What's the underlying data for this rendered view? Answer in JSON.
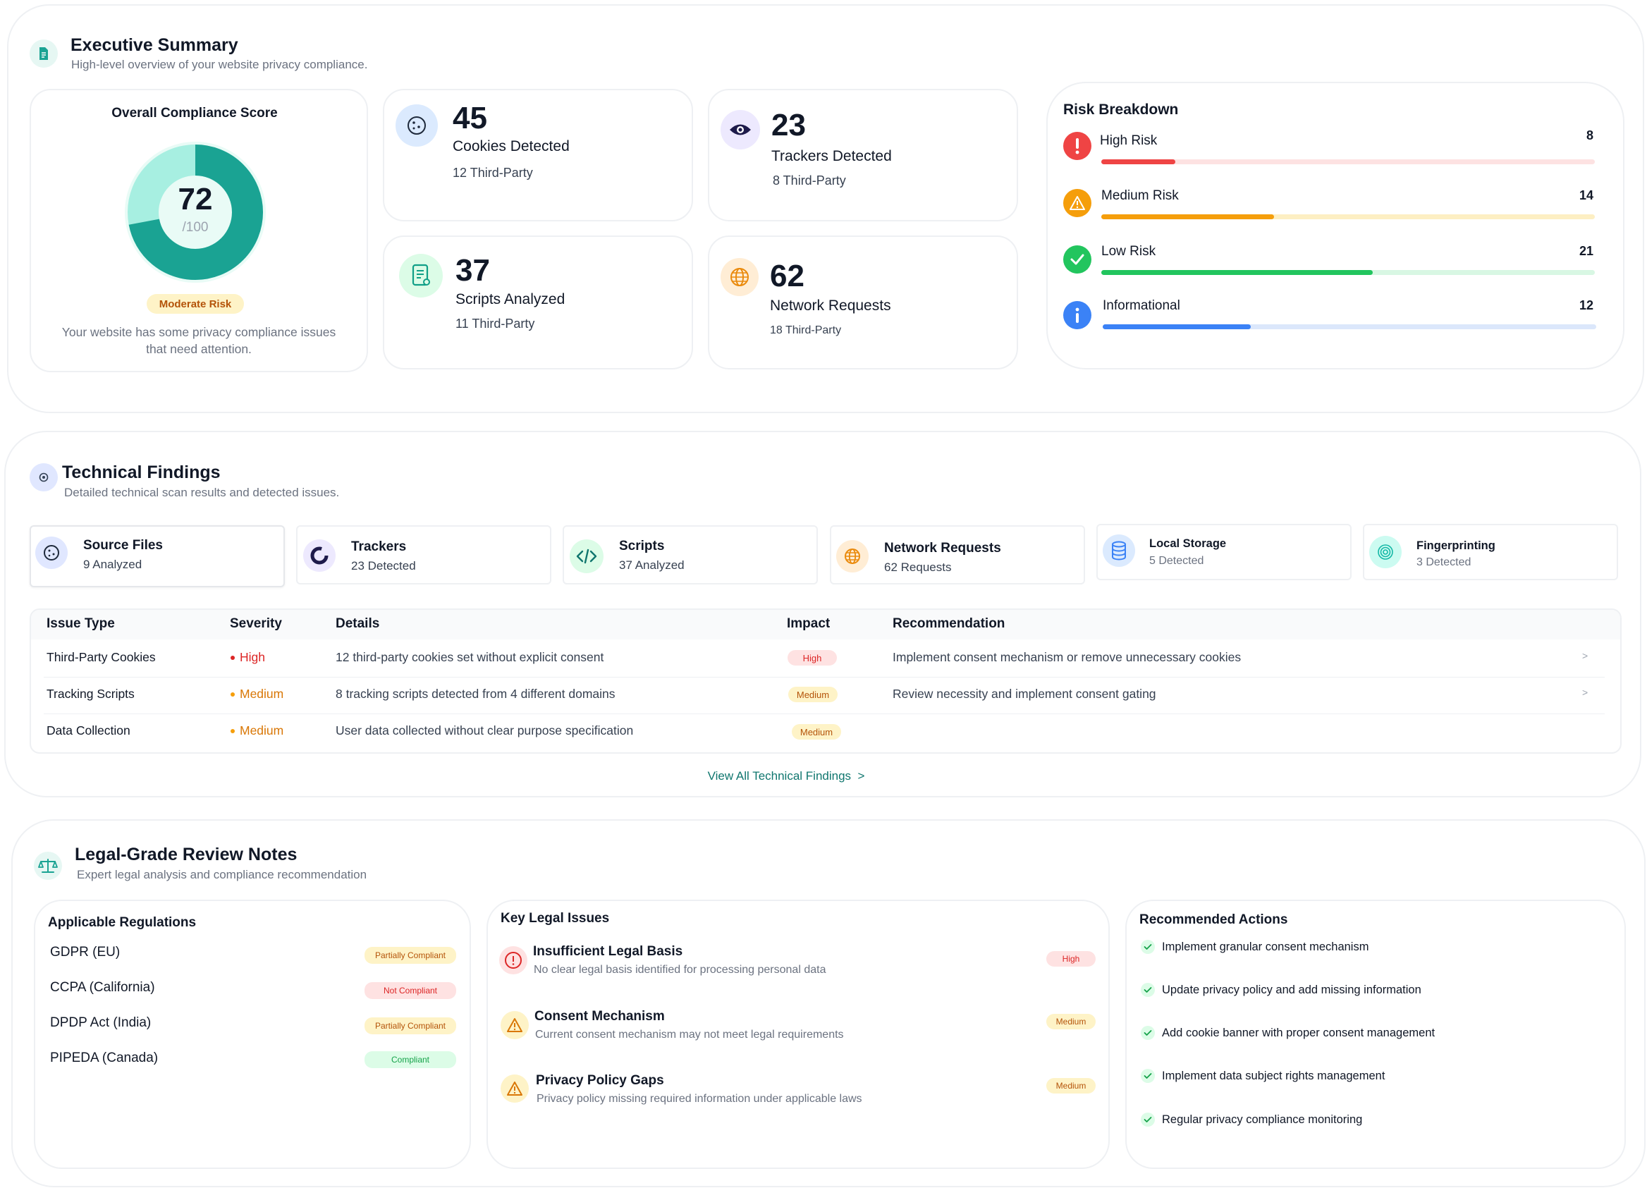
{
  "colors": {
    "teal": "#1aa393",
    "teal_light": "#a7efe1",
    "high": "#ef4444",
    "medium": "#f59e0b",
    "low": "#22c55e",
    "info": "#3b82f6"
  },
  "executive": {
    "title": "Executive Summary",
    "subtitle": "High-level overview of your website privacy compliance.",
    "icon": "document-icon",
    "score": {
      "heading": "Overall Compliance Score",
      "value": "72",
      "max": "/100",
      "fraction": 0.72,
      "badge": "Moderate Risk",
      "note_line1": "Your website has some privacy compliance issues",
      "note_line2": "that need attention."
    },
    "stats": [
      {
        "value": "45",
        "label": "Cookies Detected",
        "sub": "12 Third-Party",
        "icon": "cookie-icon"
      },
      {
        "value": "23",
        "label": "Trackers Detected",
        "sub": "8 Third-Party",
        "icon": "eye-icon"
      },
      {
        "value": "37",
        "label": "Scripts Analyzed",
        "sub": "11 Third-Party",
        "icon": "script-icon"
      },
      {
        "value": "62",
        "label": "Network Requests",
        "sub": "18 Third-Party",
        "icon": "globe-icon"
      }
    ],
    "risk": {
      "title": "Risk Breakdown",
      "items": [
        {
          "label": "High Risk",
          "count": "8",
          "fraction": 0.15,
          "icon": "exclamation-icon"
        },
        {
          "label": "Medium Risk",
          "count": "14",
          "fraction": 0.35,
          "icon": "warning-icon"
        },
        {
          "label": "Low Risk",
          "count": "21",
          "fraction": 0.55,
          "icon": "check-icon"
        },
        {
          "label": "Informational",
          "count": "12",
          "fraction": 0.3,
          "icon": "info-icon"
        }
      ]
    }
  },
  "technical": {
    "title": "Technical Findings",
    "subtitle": "Detailed technical scan results and detected issues.",
    "icon": "gear-icon",
    "tabs": [
      {
        "label": "Source Files",
        "sub": "9 Analyzed",
        "icon": "cookie-icon"
      },
      {
        "label": "Trackers",
        "sub": "23 Detected",
        "icon": "ring-icon"
      },
      {
        "label": "Scripts",
        "sub": "37 Analyzed",
        "icon": "code-icon"
      },
      {
        "label": "Network Requests",
        "sub": "62 Requests",
        "icon": "globe-icon"
      },
      {
        "label": "Local Storage",
        "sub": "5 Detected",
        "icon": "database-icon"
      },
      {
        "label": "Fingerprinting",
        "sub": "3 Detected",
        "icon": "fingerprint-icon"
      }
    ],
    "columns": [
      "Issue Type",
      "Severity",
      "Details",
      "Impact",
      "Recommendation"
    ],
    "rows": [
      {
        "type": "Third-Party Cookies",
        "severity": "High",
        "details": "12 third-party cookies set without explicit consent",
        "impact": "High",
        "recommendation": "Implement consent mechanism or remove unnecessary cookies",
        "chevron": ">"
      },
      {
        "type": "Tracking Scripts",
        "severity": "Medium",
        "details": "8 tracking scripts detected from 4 different domains",
        "impact": "Medium",
        "recommendation": "Review necessity and implement consent gating",
        "chevron": ">"
      },
      {
        "type": "Data Collection",
        "severity": "Medium",
        "details": "User data collected without clear purpose specification",
        "impact": "Medium",
        "recommendation": "",
        "chevron": ""
      }
    ],
    "view_all": "View All Technical Findings  >"
  },
  "legal": {
    "title": "Legal-Grade Review Notes",
    "subtitle": "Expert legal analysis and compliance recommendation",
    "icon": "scale-icon",
    "regulations": {
      "title": "Applicable Regulations",
      "items": [
        {
          "name": "GDPR (EU)",
          "status": "Partially Compliant",
          "kind": "partial"
        },
        {
          "name": "CCPA (California)",
          "status": "Not Compliant",
          "kind": "not"
        },
        {
          "name": "DPDP Act (India)",
          "status": "Partially Compliant",
          "kind": "partial"
        },
        {
          "name": "PIPEDA (Canada)",
          "status": "Compliant",
          "kind": "ok"
        }
      ]
    },
    "issues": {
      "title": "Key Legal Issues",
      "items": [
        {
          "title": "Insufficient Legal Basis",
          "sub": "No clear legal basis identified for processing personal data",
          "level": "High",
          "icon": "alert-circle-icon"
        },
        {
          "title": "Consent Mechanism",
          "sub": "Current consent mechanism may not meet legal requirements",
          "level": "Medium",
          "icon": "warning-icon"
        },
        {
          "title": "Privacy Policy Gaps",
          "sub": "Privacy policy missing required information under applicable laws",
          "level": "Medium",
          "icon": "warning-icon"
        }
      ]
    },
    "actions": {
      "title": "Recommended Actions",
      "items": [
        "Implement granular consent mechanism",
        "Update privacy policy and add missing information",
        "Add cookie banner with proper consent management",
        "Implement data subject rights management",
        "Regular privacy compliance monitoring"
      ]
    }
  }
}
